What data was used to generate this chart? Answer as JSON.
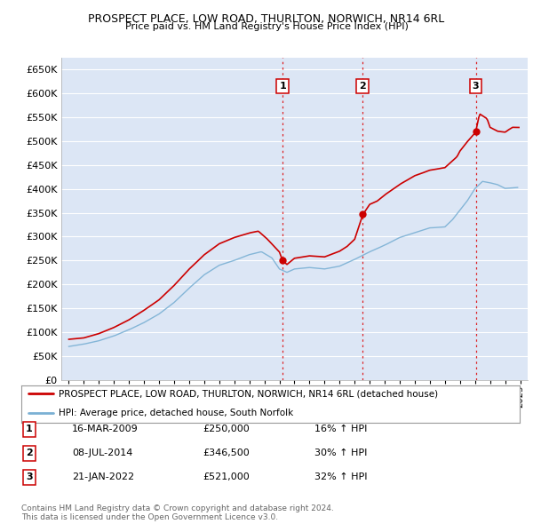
{
  "title": "PROSPECT PLACE, LOW ROAD, THURLTON, NORWICH, NR14 6RL",
  "subtitle": "Price paid vs. HM Land Registry's House Price Index (HPI)",
  "background_color": "#ffffff",
  "plot_bg_color": "#dce6f5",
  "grid_color": "#ffffff",
  "red_line_label": "PROSPECT PLACE, LOW ROAD, THURLTON, NORWICH, NR14 6RL (detached house)",
  "blue_line_label": "HPI: Average price, detached house, South Norfolk",
  "transactions": [
    {
      "num": 1,
      "date": "16-MAR-2009",
      "price": "£250,000",
      "change": "16% ↑ HPI",
      "year": 2009.21
    },
    {
      "num": 2,
      "date": "08-JUL-2014",
      "price": "£346,500",
      "change": "30% ↑ HPI",
      "year": 2014.54
    },
    {
      "num": 3,
      "date": "21-JAN-2022",
      "price": "£521,000",
      "change": "32% ↑ HPI",
      "year": 2022.05
    }
  ],
  "footnote": "Contains HM Land Registry data © Crown copyright and database right 2024.\nThis data is licensed under the Open Government Licence v3.0.",
  "ylim": [
    0,
    675000
  ],
  "yticks": [
    0,
    50000,
    100000,
    150000,
    200000,
    250000,
    300000,
    350000,
    400000,
    450000,
    500000,
    550000,
    600000,
    650000
  ],
  "xlim_start": 1994.5,
  "xlim_end": 2025.5,
  "red_color": "#cc0000",
  "blue_color": "#7ab0d4",
  "vline_color": "#dd0000",
  "dot_color": "#cc0000"
}
